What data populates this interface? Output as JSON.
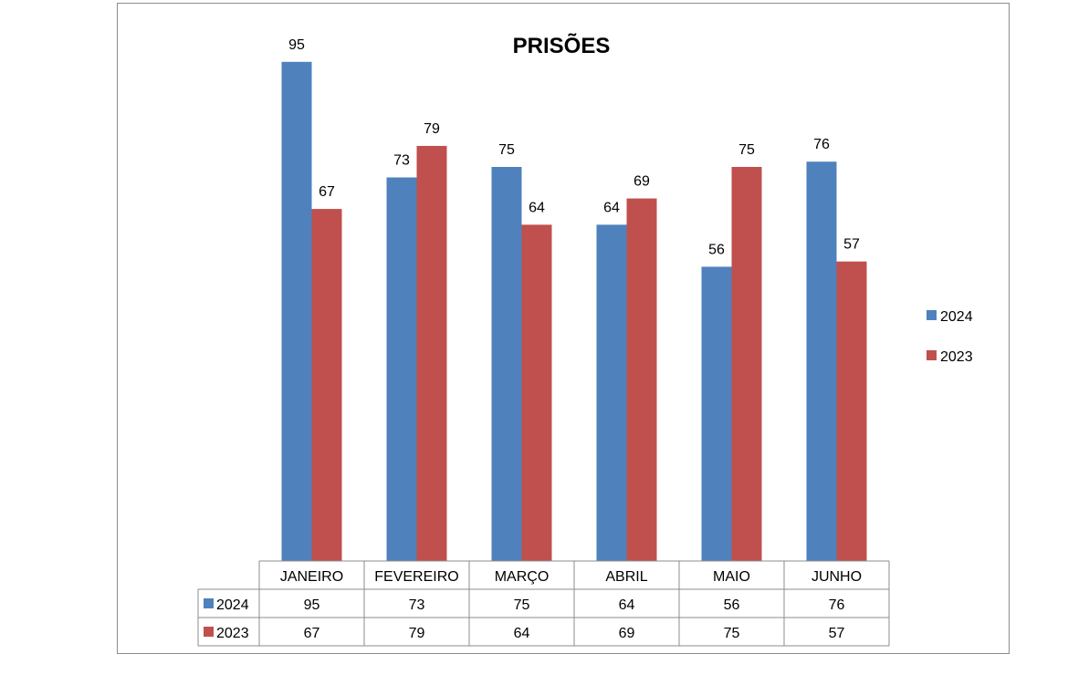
{
  "chart_data": {
    "type": "bar",
    "title": "PRISÕES",
    "xlabel": "",
    "ylabel": "",
    "ylim": [
      0,
      100
    ],
    "categories": [
      "JANEIRO",
      "FEVEREIRO",
      "MARÇO",
      "ABRIL",
      "MAIO",
      "JUNHO"
    ],
    "series": [
      {
        "name": "2024",
        "color": "#4f81bd",
        "values": [
          95,
          73,
          75,
          64,
          56,
          76
        ]
      },
      {
        "name": "2023",
        "color": "#c0504d",
        "values": [
          67,
          79,
          64,
          69,
          75,
          57
        ]
      }
    ],
    "legend_position": "right",
    "data_table": true,
    "grid": false
  }
}
